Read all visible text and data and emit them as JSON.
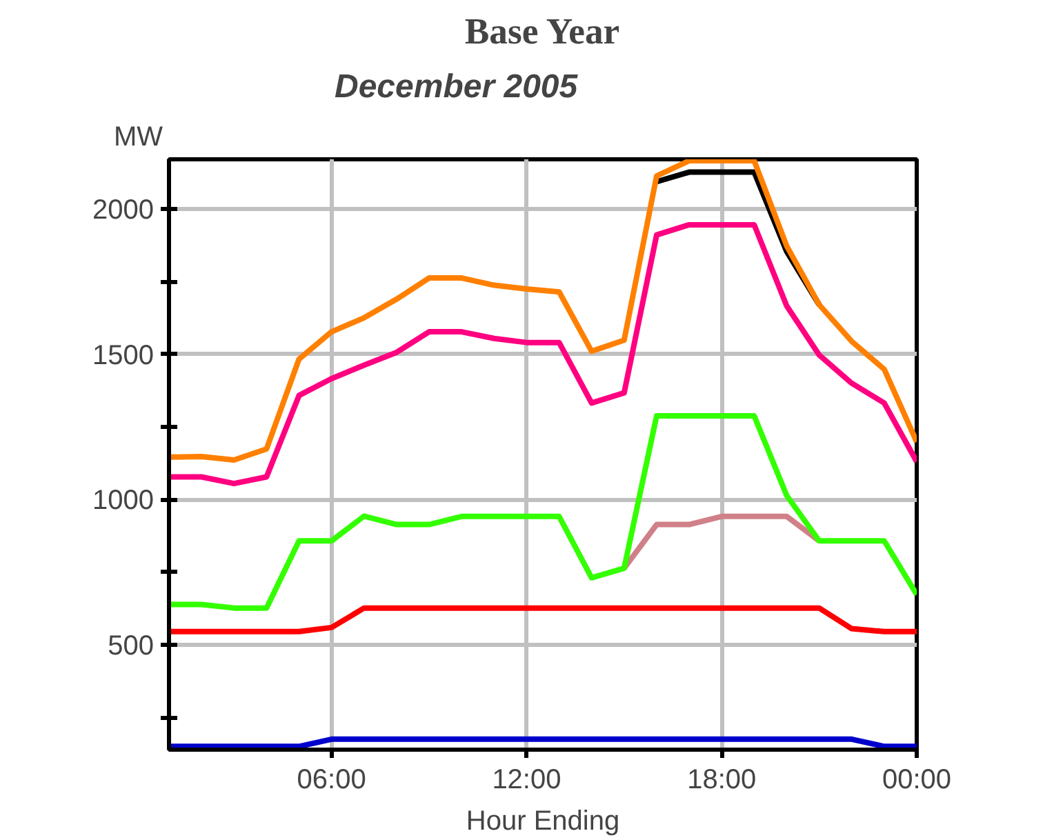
{
  "chart_data": {
    "type": "line",
    "title": "Base Year",
    "subtitle": "December 2005",
    "ylabel": "MW",
    "xlabel": "Hour Ending",
    "x": [
      1,
      2,
      3,
      4,
      5,
      6,
      7,
      8,
      9,
      10,
      11,
      12,
      13,
      14,
      15,
      16,
      17,
      18,
      19,
      20,
      21,
      22,
      23,
      24
    ],
    "xlim": [
      1,
      24
    ],
    "xticks": [
      {
        "value": 6,
        "label": "06:00"
      },
      {
        "value": 12,
        "label": "12:00"
      },
      {
        "value": 18,
        "label": "18:00"
      },
      {
        "value": 24,
        "label": "00:00"
      }
    ],
    "ylim": [
      140,
      2170
    ],
    "yticks": [
      {
        "value": 250,
        "label": null
      },
      500,
      {
        "value": 750,
        "label": null
      },
      1000,
      {
        "value": 1250,
        "label": null
      },
      1500,
      {
        "value": 1750,
        "label": null
      },
      2000
    ],
    "grid": true,
    "marker": "none",
    "line_style": "solid",
    "series": [
      {
        "color": "#000000",
        "values": [
          null,
          null,
          null,
          null,
          null,
          null,
          null,
          null,
          null,
          null,
          null,
          null,
          null,
          null,
          null,
          2093,
          2126,
          2126,
          2126,
          1853,
          1670,
          null,
          null,
          null
        ]
      },
      {
        "color": "#ff8000",
        "values": [
          1146,
          1148,
          1136,
          1174,
          1483,
          1577,
          1625,
          1689,
          1762,
          1762,
          1737,
          1724,
          1714,
          1510,
          1548,
          2113,
          2165,
          2165,
          2165,
          1872,
          1670,
          1544,
          1448,
          1198
        ]
      },
      {
        "color": "#ff0080",
        "values": [
          1078,
          1078,
          1055,
          1078,
          1358,
          1416,
          1462,
          1506,
          1577,
          1577,
          1554,
          1540,
          1540,
          1332,
          1367,
          1910,
          1945,
          1945,
          1945,
          1666,
          1497,
          1400,
          1332,
          1130
        ]
      },
      {
        "color": "#d08088",
        "values": [
          null,
          null,
          null,
          null,
          null,
          null,
          null,
          null,
          null,
          null,
          null,
          null,
          null,
          null,
          764,
          914,
          914,
          942,
          942,
          942,
          858,
          null,
          null,
          null
        ]
      },
      {
        "color": "#33ff00",
        "values": [
          639,
          639,
          627,
          627,
          858,
          858,
          943,
          914,
          914,
          942,
          942,
          942,
          942,
          731,
          764,
          1288,
          1288,
          1288,
          1288,
          1014,
          858,
          858,
          858,
          673
        ]
      },
      {
        "color": "#ff0000",
        "values": [
          546,
          546,
          546,
          546,
          546,
          560,
          627,
          627,
          627,
          627,
          627,
          627,
          627,
          627,
          627,
          627,
          627,
          627,
          627,
          627,
          627,
          556,
          546,
          546
        ]
      },
      {
        "color": "#0000cc",
        "values": [
          151,
          151,
          151,
          151,
          151,
          176,
          176,
          176,
          176,
          176,
          176,
          176,
          176,
          176,
          176,
          176,
          176,
          176,
          176,
          176,
          176,
          176,
          151,
          151
        ]
      }
    ]
  }
}
